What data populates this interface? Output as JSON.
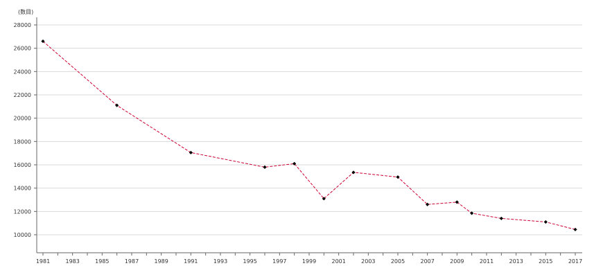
{
  "chart_data": {
    "type": "line",
    "unit_label": "(数目)",
    "x_ticks": [
      "1981",
      "1983",
      "1985",
      "1987",
      "1989",
      "1991",
      "1993",
      "1995",
      "1997",
      "1999",
      "2001",
      "2003",
      "2005",
      "2007",
      "2009",
      "2011",
      "2013",
      "2015",
      "2017"
    ],
    "y_ticks": [
      "10000",
      "12000",
      "14000",
      "16000",
      "18000",
      "20000",
      "22000",
      "24000",
      "26000",
      "28000"
    ],
    "xlim": [
      1981,
      2017
    ],
    "ylim": [
      8500,
      28000
    ],
    "grid": true,
    "series": [
      {
        "color": "#cc0033",
        "marker_color": "#000000",
        "dash": true,
        "points": [
          {
            "x": 1981,
            "y": 26600
          },
          {
            "x": 1986,
            "y": 21100
          },
          {
            "x": 1991,
            "y": 17050
          },
          {
            "x": 1996,
            "y": 15800
          },
          {
            "x": 1998,
            "y": 16100
          },
          {
            "x": 2000,
            "y": 13100
          },
          {
            "x": 2002,
            "y": 15350
          },
          {
            "x": 2005,
            "y": 14950
          },
          {
            "x": 2007,
            "y": 12600
          },
          {
            "x": 2009,
            "y": 12800
          },
          {
            "x": 2010,
            "y": 11850
          },
          {
            "x": 2012,
            "y": 11400
          },
          {
            "x": 2015,
            "y": 11100
          },
          {
            "x": 2017,
            "y": 10450
          }
        ]
      }
    ]
  }
}
